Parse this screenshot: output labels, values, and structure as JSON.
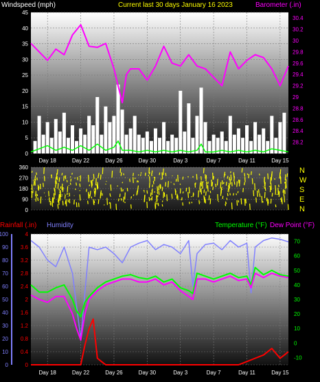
{
  "header": {
    "windspeed_label": "Windspeed (mph)",
    "period_label": "Current last 30 days January 16 2023",
    "barometer_label": "Barometer (.in)"
  },
  "footer": {
    "rainfall_label": "Rainfall (.in)",
    "humidity_label": "Humidity",
    "temperature_label": "Temperature (°F)",
    "dewpoint_label": "Dew Point (°F)"
  },
  "colors": {
    "windspeed": "#ffffff",
    "windgust": "#00ff00",
    "barometer": "#ff00ff",
    "wind_direction": "#ffff00",
    "rainfall": "#ff0000",
    "humidity": "#8080ff",
    "temperature": "#00ff00",
    "dewpoint": "#ff00ff",
    "grid": "#7a7a7a"
  },
  "chart_data": [
    {
      "type": "line",
      "id": "wind-baro",
      "x_tick_labels": [
        "Day 18",
        "Day 22",
        "Day 26",
        "Day 30",
        "Day 3",
        "Day 7",
        "Day 11",
        "Day 15"
      ],
      "x_tick_days": [
        2,
        6,
        10,
        14,
        18,
        22,
        26,
        30
      ],
      "xlim": [
        0,
        31
      ],
      "y_left_ticks": [
        "0",
        "5",
        "10",
        "15",
        "20",
        "25",
        "30",
        "35",
        "40",
        "45"
      ],
      "ylim_left": [
        0,
        45
      ],
      "y_right_ticks": [
        "28.2",
        "28.4",
        "28.6",
        "28.8",
        "29",
        "29.2",
        "29.4",
        "29.6",
        "29.8",
        "30",
        "30.2",
        "30.4"
      ],
      "ylim_right": [
        28.0,
        30.5
      ],
      "series": [
        {
          "name": "Windspeed (mph)",
          "axis": "left",
          "kind": "bars",
          "x": [
            0.5,
            1,
            1.5,
            2,
            2.5,
            3,
            3.5,
            4,
            4.5,
            5,
            5.5,
            6,
            6.5,
            7,
            7.5,
            8,
            8.5,
            9,
            9.5,
            10,
            10.5,
            11,
            11.5,
            12,
            12.5,
            13,
            13.5,
            14,
            14.5,
            15,
            15.5,
            16,
            16.5,
            17,
            17.5,
            18,
            18.5,
            19,
            19.5,
            20,
            20.5,
            21,
            21.5,
            22,
            22.5,
            23,
            23.5,
            24,
            24.5,
            25,
            25.5,
            26,
            26.5,
            27,
            27.5,
            28,
            28.5,
            29,
            29.5,
            30,
            30.5
          ],
          "values": [
            4,
            12,
            6,
            10,
            5,
            11,
            7,
            13,
            5,
            9,
            4,
            8,
            6,
            12,
            9,
            18,
            6,
            15,
            10,
            12,
            22,
            14,
            6,
            8,
            12,
            6,
            5,
            7,
            4,
            8,
            5,
            10,
            4,
            6,
            5,
            20,
            7,
            16,
            5,
            12,
            21,
            10,
            4,
            6,
            5,
            7,
            4,
            12,
            6,
            8,
            5,
            9,
            4,
            10,
            6,
            8,
            4,
            12,
            5,
            10,
            13
          ]
        },
        {
          "name": "Wind gust",
          "axis": "left",
          "kind": "line",
          "x": [
            0,
            1,
            2,
            3,
            4,
            5,
            6,
            7,
            8,
            9,
            10,
            10.5,
            11,
            12,
            13,
            14,
            15,
            16,
            17,
            18,
            19,
            20,
            20.5,
            21,
            22,
            23,
            24,
            25,
            26,
            27,
            28,
            29,
            30,
            31
          ],
          "values": [
            0.5,
            1.5,
            2.5,
            1,
            2,
            1,
            2.5,
            1,
            3,
            1,
            2,
            4,
            1,
            1,
            0.5,
            1,
            0.5,
            1,
            0.5,
            1,
            0.5,
            1,
            3,
            0.5,
            0.5,
            1,
            0.5,
            1,
            0.5,
            1,
            0.5,
            1.5,
            1,
            0.5
          ]
        },
        {
          "name": "Barometer (.in)",
          "axis": "right",
          "kind": "line",
          "x": [
            0,
            1,
            2,
            3,
            4,
            5,
            6,
            7,
            8,
            9,
            10,
            10.5,
            11,
            11.5,
            12,
            13,
            14,
            15,
            16,
            17,
            18,
            19,
            20,
            21,
            22,
            23,
            24,
            25,
            26,
            27,
            28,
            29,
            30,
            31
          ],
          "values": [
            29.95,
            29.8,
            29.65,
            29.85,
            29.75,
            30.1,
            30.28,
            29.9,
            29.88,
            29.95,
            29.5,
            29.2,
            28.9,
            29.4,
            29.5,
            29.5,
            29.3,
            29.55,
            29.9,
            29.6,
            29.55,
            29.75,
            29.55,
            29.5,
            29.35,
            29.2,
            29.8,
            29.5,
            29.65,
            29.75,
            29.7,
            29.5,
            29.2,
            29.55
          ]
        }
      ]
    },
    {
      "type": "scatter",
      "id": "wind-direction",
      "x_tick_labels": [],
      "xlim": [
        0,
        31
      ],
      "y_left_ticks": [
        "0",
        "90",
        "180",
        "270",
        "360"
      ],
      "ylim": [
        0,
        360
      ],
      "compass_labels": [
        "N",
        "W",
        "S",
        "E",
        "N"
      ],
      "series": [
        {
          "name": "Wind direction",
          "kind": "density",
          "day_ranges": [
            [
              0,
              31
            ]
          ],
          "typical_range": [
            45,
            320
          ]
        }
      ]
    },
    {
      "type": "line",
      "id": "rain-hum-temp",
      "x_tick_labels": [
        "Day 18",
        "Day 22",
        "Day 26",
        "Day 30",
        "Day 3",
        "Day 7",
        "Day 11",
        "Day 15"
      ],
      "x_tick_days": [
        2,
        6,
        10,
        14,
        18,
        22,
        26,
        30
      ],
      "xlim": [
        0,
        31
      ],
      "y_humidity_ticks": [
        "0",
        "10",
        "20",
        "30",
        "40",
        "50",
        "60",
        "70",
        "80",
        "90",
        "100"
      ],
      "ylim_humidity": [
        0,
        100
      ],
      "y_rain_ticks": [
        "0",
        "0.4",
        "0.8",
        "1.2",
        "1.6",
        "2",
        "2.4",
        "2.8",
        "3.2",
        "3.6",
        "4"
      ],
      "ylim_rain": [
        0,
        4
      ],
      "y_temp_ticks": [
        "-10",
        "0",
        "10",
        "20",
        "30",
        "40",
        "50",
        "60",
        "70"
      ],
      "ylim_temp": [
        -15,
        75
      ],
      "series": [
        {
          "name": "Humidity",
          "axis": "humidity",
          "kind": "line",
          "x": [
            0,
            1,
            2,
            3,
            4,
            5,
            5.5,
            6,
            6.5,
            7,
            8,
            9,
            10,
            11,
            12,
            13,
            14,
            15,
            16,
            17,
            18,
            19,
            19.5,
            20,
            21,
            22,
            23,
            24,
            25,
            26,
            26.5,
            27,
            28,
            29,
            30,
            31
          ],
          "values": [
            95,
            90,
            80,
            75,
            90,
            70,
            45,
            20,
            55,
            90,
            88,
            90,
            85,
            78,
            90,
            93,
            95,
            88,
            92,
            90,
            85,
            95,
            60,
            85,
            92,
            93,
            88,
            95,
            90,
            93,
            55,
            90,
            95,
            97,
            96,
            94
          ]
        },
        {
          "name": "Temperature (°F)",
          "axis": "temp",
          "kind": "line",
          "x": [
            0,
            1,
            2,
            3,
            4,
            5,
            5.5,
            6,
            6.5,
            7,
            8,
            9,
            10,
            11,
            12,
            13,
            14,
            15,
            16,
            17,
            18,
            19,
            19.5,
            20,
            21,
            22,
            23,
            24,
            25,
            26,
            26.5,
            27,
            28,
            29,
            30,
            31
          ],
          "values": [
            40,
            35,
            35,
            38,
            40,
            30,
            22,
            18,
            28,
            32,
            38,
            42,
            44,
            46,
            47,
            45,
            44,
            46,
            42,
            44,
            38,
            36,
            34,
            48,
            46,
            44,
            46,
            48,
            45,
            46,
            40,
            52,
            47,
            50,
            47,
            46
          ]
        },
        {
          "name": "Dew Point (°F)",
          "axis": "temp",
          "kind": "line",
          "x": [
            0,
            1,
            2,
            3,
            4,
            5,
            5.5,
            6,
            6.5,
            7,
            8,
            9,
            10,
            11,
            12,
            13,
            14,
            15,
            16,
            17,
            18,
            19,
            19.5,
            20,
            21,
            22,
            23,
            24,
            25,
            26,
            26.5,
            27,
            28,
            29,
            30,
            31
          ],
          "values": [
            33,
            30,
            28,
            32,
            32,
            20,
            10,
            2,
            20,
            30,
            36,
            40,
            42,
            44,
            44,
            42,
            42,
            44,
            40,
            42,
            36,
            32,
            30,
            44,
            44,
            42,
            44,
            46,
            43,
            44,
            38,
            48,
            45,
            48,
            46,
            45
          ]
        },
        {
          "name": "Rainfall (.in)",
          "axis": "rain",
          "kind": "line",
          "x": [
            0,
            1,
            2,
            3,
            4,
            5,
            6,
            6.5,
            7,
            7.5,
            8,
            8.5,
            9,
            10,
            11,
            12,
            13,
            14,
            15,
            16,
            17,
            18,
            19,
            20,
            21,
            22,
            23,
            24,
            25,
            26,
            27,
            28,
            29,
            30,
            30.5,
            31
          ],
          "values": [
            0,
            0,
            0,
            0,
            0,
            0,
            0,
            0.6,
            1.1,
            1.4,
            0.2,
            0.1,
            0,
            0,
            0,
            0,
            0,
            0,
            0,
            0,
            0,
            0,
            0,
            0,
            0,
            0,
            0,
            0,
            0,
            0.1,
            0.2,
            0.3,
            0.5,
            0.2,
            0.3,
            0.4
          ]
        }
      ]
    }
  ]
}
